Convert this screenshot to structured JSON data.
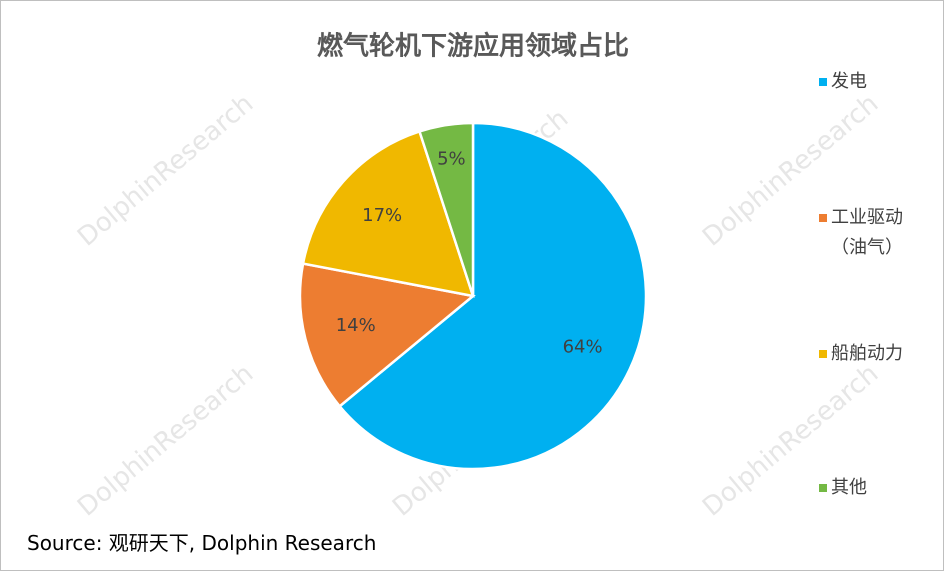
{
  "chart_data": {
    "type": "pie",
    "title": "燃气轮机下游应用领域占比",
    "categories": [
      "发电",
      "工业驱动（油气）",
      "船舶动力",
      "其他"
    ],
    "values": [
      64,
      14,
      17,
      5
    ],
    "value_labels": [
      "64%",
      "14%",
      "17%",
      "5%"
    ],
    "colors": [
      "#00b0f0",
      "#ed7d31",
      "#f0b800",
      "#74b944"
    ],
    "legend": "right",
    "source": "Source: 观研天下, Dolphin Research",
    "watermark": "DolphinResearch"
  }
}
